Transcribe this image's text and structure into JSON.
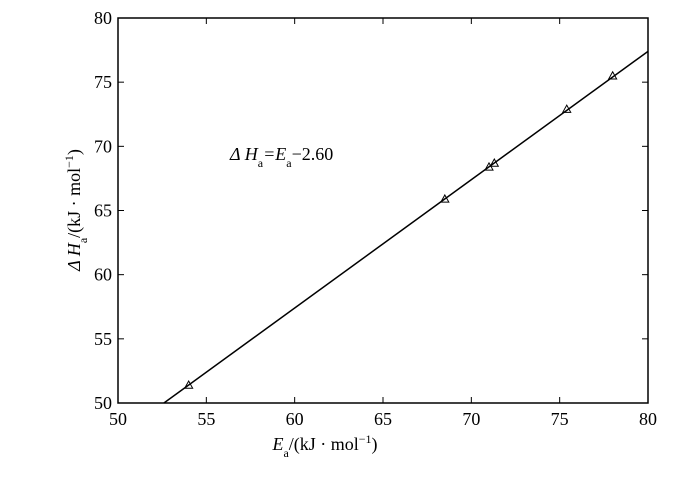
{
  "chart_data": {
    "type": "scatter",
    "x_label": [
      "E",
      "a",
      "/(kJ · mol",
      "−1",
      ")"
    ],
    "y_label": [
      "Δ H",
      "a",
      "/(kJ · mol",
      "−1",
      ")"
    ],
    "annotation": [
      "Δ H",
      "a",
      "=E",
      "a",
      "−2.60"
    ],
    "x": [
      54,
      68.5,
      71,
      71.3,
      75.4,
      78
    ],
    "values": [
      51.4,
      65.9,
      68.4,
      68.7,
      72.9,
      75.5
    ],
    "color": "#000000",
    "fit_line": {
      "x": [
        52.6,
        80
      ],
      "values": [
        50,
        77.4
      ]
    },
    "xlim": [
      50,
      80
    ],
    "xticks": [
      50,
      55,
      60,
      65,
      70,
      75,
      80
    ],
    "ylim": [
      50,
      80
    ],
    "yticks": [
      50,
      55,
      60,
      65,
      70,
      75,
      80
    ]
  }
}
